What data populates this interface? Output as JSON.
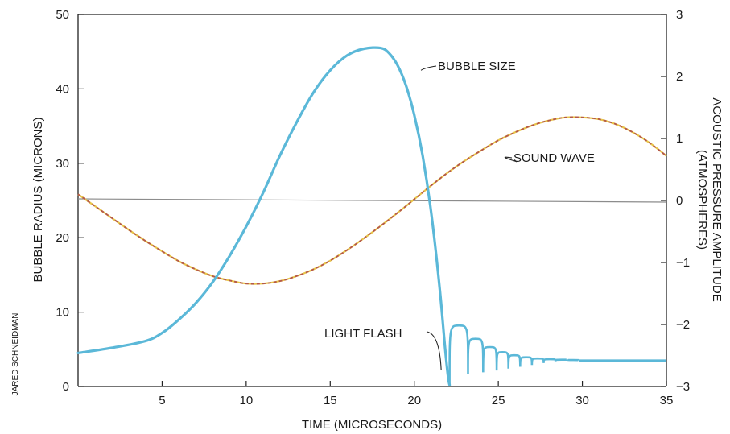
{
  "chart_data": {
    "type": "line",
    "xlabel": "TIME (MICROSECONDS)",
    "ylabel_left": "BUBBLE RADIUS (MICRONS)",
    "ylabel_right_line1": "ACOUSTIC PRESSURE AMPLITUDE",
    "ylabel_right_line2": "(ATMOSPHERES)",
    "xlim": [
      0,
      35
    ],
    "ylim_left": [
      0,
      50
    ],
    "ylim_right": [
      -3,
      3
    ],
    "x_ticks": [
      5,
      10,
      15,
      20,
      25,
      30,
      35
    ],
    "y_left_ticks": [
      0,
      10,
      20,
      30,
      40,
      50
    ],
    "y_right_ticks": [
      -3,
      -2,
      -1,
      0,
      1,
      2,
      3
    ],
    "y_right_tick_labels": [
      "−3",
      "−2",
      "−1",
      "0",
      "1",
      "2",
      "3"
    ],
    "grid": false,
    "reference_line": {
      "axis": "right",
      "y": 0
    },
    "series": [
      {
        "name": "BUBBLE SIZE",
        "axis": "left",
        "color": "#5bb8d8",
        "x": [
          0,
          2,
          4,
          5,
          6,
          7,
          8,
          9,
          10,
          11,
          12,
          13,
          14,
          15,
          16,
          17,
          18,
          18.5,
          19,
          19.5,
          20,
          20.5,
          21,
          21.5,
          21.8,
          22.0,
          22.1
        ],
        "y": [
          4.5,
          5.2,
          6.1,
          7.2,
          9.0,
          11.2,
          14.0,
          17.5,
          21.5,
          26.0,
          31.0,
          35.5,
          39.5,
          42.5,
          44.5,
          45.4,
          45.5,
          44.8,
          43.2,
          40.5,
          36.5,
          31.0,
          23.5,
          13.5,
          6.0,
          1.5,
          0.2
        ]
      },
      {
        "name": "SOUND WAVE",
        "axis": "right",
        "color": "#b5584a",
        "x": [
          0,
          1,
          2,
          3,
          4,
          5,
          6,
          7,
          8,
          9,
          10,
          11,
          12,
          13,
          14,
          15,
          16,
          17,
          18,
          19,
          20,
          21,
          22,
          23,
          24,
          25,
          26,
          27,
          28,
          29,
          30,
          31,
          32,
          33,
          34,
          35
        ],
        "y": [
          0.1,
          -0.09,
          -0.28,
          -0.47,
          -0.65,
          -0.82,
          -0.98,
          -1.11,
          -1.22,
          -1.29,
          -1.34,
          -1.34,
          -1.3,
          -1.22,
          -1.11,
          -0.97,
          -0.8,
          -0.61,
          -0.41,
          -0.2,
          0.02,
          0.24,
          0.45,
          0.64,
          0.81,
          0.97,
          1.1,
          1.21,
          1.29,
          1.34,
          1.34,
          1.31,
          1.23,
          1.1,
          0.93,
          0.72
        ]
      }
    ],
    "afterbounce": {
      "series": "BUBBLE SIZE",
      "start_x": 22.1,
      "end_x": 35,
      "baseline_y": 3.5,
      "first_peak_y": 8.2,
      "bounces": [
        {
          "x0": 22.1,
          "x1": 23.2
        },
        {
          "x0": 23.2,
          "x1": 24.1
        },
        {
          "x0": 24.1,
          "x1": 24.9
        },
        {
          "x0": 24.9,
          "x1": 25.6
        },
        {
          "x0": 25.6,
          "x1": 26.3
        },
        {
          "x0": 26.3,
          "x1": 27.0
        },
        {
          "x0": 27.0,
          "x1": 27.7
        },
        {
          "x0": 27.7,
          "x1": 28.4
        },
        {
          "x0": 28.4,
          "x1": 29.1
        },
        {
          "x0": 29.1,
          "x1": 29.8
        }
      ]
    },
    "annotations": [
      {
        "text": "BUBBLE SIZE",
        "x": 20.4,
        "y_left": 42.5
      },
      {
        "text": "SOUND WAVE",
        "x": 26.1,
        "y_left": 30.0
      },
      {
        "text": "LIGHT FLASH",
        "x": 21.6,
        "y_left": 4.0
      }
    ],
    "credit": "JARED SCHNEIDMAN"
  }
}
